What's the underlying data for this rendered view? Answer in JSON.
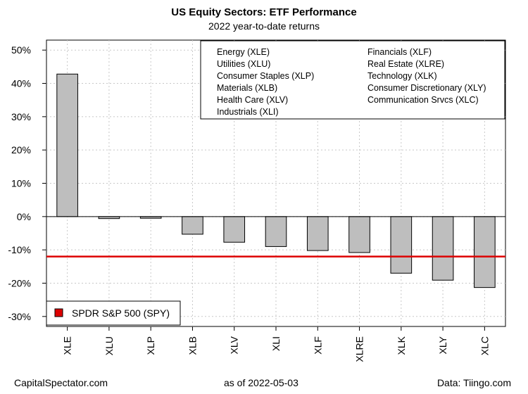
{
  "header": {
    "title": "US Equity Sectors: ETF Performance",
    "subtitle": "2022 year-to-date returns"
  },
  "footer": {
    "left": "CapitalSpectator.com",
    "middle": "as of   2022-05-03",
    "right": "Data: Tiingo.com"
  },
  "chart_data": {
    "type": "bar",
    "categories": [
      "XLE",
      "XLU",
      "XLP",
      "XLB",
      "XLV",
      "XLI",
      "XLF",
      "XLRE",
      "XLK",
      "XLY",
      "XLC"
    ],
    "values": [
      42.8,
      -0.6,
      -0.5,
      -5.3,
      -7.7,
      -9.0,
      -10.2,
      -10.8,
      -17.0,
      -19.1,
      -21.3
    ],
    "ylim": [
      -33,
      53
    ],
    "yticks": [
      50,
      40,
      30,
      20,
      10,
      0,
      -10,
      -20,
      -30
    ],
    "ytick_labels": [
      "50%",
      "40%",
      "30%",
      "20%",
      "10%",
      "0%",
      "-10%",
      "-20%",
      "-30%"
    ],
    "grid": true,
    "bar_color": "#bebebe",
    "reference_line": {
      "label": "SPDR S&P 500 (SPY)",
      "value": -12.0,
      "color": "#dd0000"
    },
    "legend": {
      "placement": "top-right",
      "column1": [
        "Energy (XLE)",
        "Utilities (XLU)",
        "Consumer Staples (XLP)",
        "Materials (XLB)",
        "Health Care (XLV)",
        "Industrials (XLI)"
      ],
      "column2": [
        "Financials (XLF)",
        "Real Estate (XLRE)",
        "Technology (XLK)",
        "Consumer Discretionary (XLY)",
        "Communication Srvcs (XLC)"
      ]
    },
    "ref_legend_placement": "bottom-left"
  }
}
